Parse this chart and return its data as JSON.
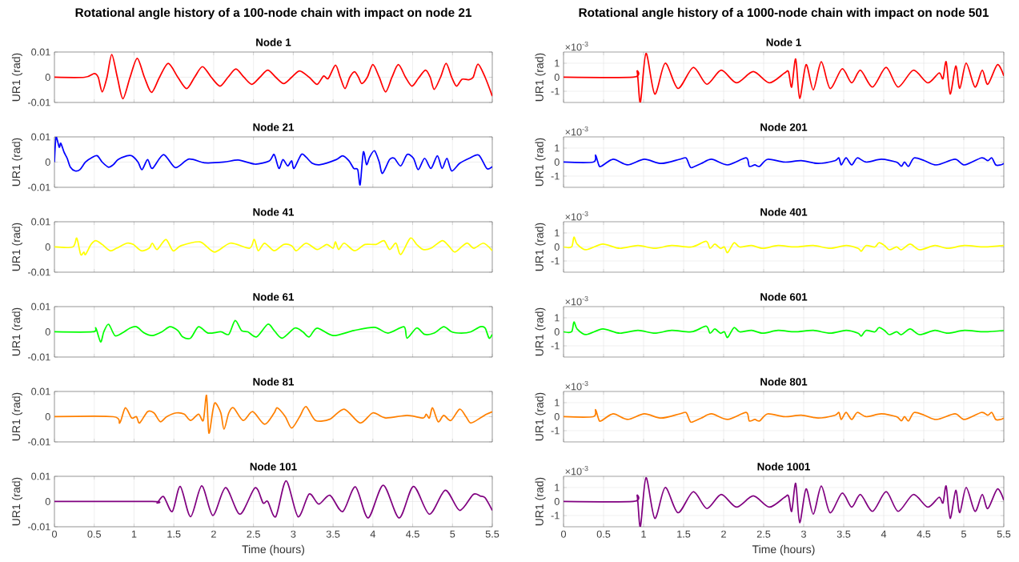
{
  "chart_data": [
    {
      "type": "line",
      "title": "Rotational angle history of a 100-node chain with impact on node 21",
      "subtitle": "Node 1",
      "ylabel": "UR1 (rad)",
      "xlim": [
        0,
        5.5
      ],
      "xticks": [
        0,
        0.5,
        1,
        1.5,
        2,
        2.5,
        3,
        3.5,
        4,
        4.5,
        5,
        5.5
      ],
      "ylim": [
        -0.01,
        0.01
      ],
      "yticks": [
        -0.01,
        0,
        0.01
      ],
      "grid": true,
      "tick_labels": "y",
      "color": "#ff0000",
      "x": [
        0,
        0.38,
        0.5,
        0.55,
        0.6,
        0.66,
        0.72,
        0.79,
        0.86,
        0.95,
        1.04,
        1.13,
        1.22,
        1.32,
        1.43,
        1.55,
        1.66,
        1.76,
        1.86,
        1.97,
        2.08,
        2.18,
        2.28,
        2.38,
        2.48,
        2.58,
        2.68,
        2.78,
        2.88,
        2.98,
        3.08,
        3.2,
        3.3,
        3.38,
        3.44,
        3.53,
        3.59,
        3.65,
        3.71,
        3.77,
        3.82,
        3.86,
        3.93,
        4.0,
        4.08,
        4.16,
        4.24,
        4.32,
        4.41,
        4.49,
        4.57,
        4.66,
        4.72,
        4.77,
        4.85,
        4.92,
        4.99,
        5.05,
        5.12,
        5.2,
        5.26,
        5.32,
        5.41,
        5.5
      ],
      "values": [
        0,
        0,
        0.0015,
        0,
        -0.0058,
        0,
        0.009,
        0,
        -0.0085,
        0,
        0.0075,
        0,
        -0.006,
        0,
        0.0055,
        0,
        -0.0045,
        0,
        0.0042,
        0,
        -0.0035,
        0,
        0.0033,
        0,
        -0.0028,
        0,
        0.0028,
        0,
        -0.0025,
        0,
        0.0025,
        0,
        -0.0028,
        0.0005,
        -0.0005,
        0.0048,
        0,
        -0.0045,
        0,
        0.0022,
        0,
        -0.0025,
        0,
        0.005,
        0,
        -0.0058,
        0,
        0.005,
        0,
        -0.0035,
        -0.0005,
        0.0028,
        0,
        -0.0048,
        0,
        0.0055,
        0,
        -0.0035,
        -0.0008,
        -0.001,
        0,
        0.0052,
        0,
        -0.0075
      ]
    },
    {
      "type": "line",
      "title": "Node 21",
      "ylabel": "UR1 (rad)",
      "xlim": [
        0,
        5.5
      ],
      "xticks": [
        0,
        0.5,
        1,
        1.5,
        2,
        2.5,
        3,
        3.5,
        4,
        4.5,
        5,
        5.5
      ],
      "ylim": [
        -0.01,
        0.01
      ],
      "yticks": [
        -0.01,
        0,
        0.01
      ],
      "grid": true,
      "tick_labels": "y",
      "color": "#0000ff",
      "x": [
        0,
        0.02,
        0.06,
        0.08,
        0.12,
        0.16,
        0.2,
        0.26,
        0.32,
        0.39,
        0.48,
        0.54,
        0.6,
        0.68,
        0.74,
        0.8,
        0.91,
        0.97,
        1.05,
        1.1,
        1.17,
        1.23,
        1.37,
        1.52,
        1.69,
        1.89,
        2.13,
        2.31,
        2.52,
        2.7,
        2.76,
        2.82,
        2.87,
        2.93,
        2.98,
        3.01,
        3.1,
        3.16,
        3.24,
        3.34,
        3.54,
        3.62,
        3.7,
        3.76,
        3.81,
        3.84,
        3.88,
        3.92,
        3.96,
        4.02,
        4.08,
        4.12,
        4.21,
        4.27,
        4.35,
        4.43,
        4.51,
        4.57,
        4.65,
        4.73,
        4.81,
        4.87,
        4.93,
        4.99,
        5.09,
        5.21,
        5.33,
        5.43,
        5.5
      ],
      "values": [
        0,
        0.0098,
        0.0059,
        0.0075,
        0.004,
        0.0015,
        -0.002,
        -0.0035,
        -0.003,
        0,
        0.002,
        0.0025,
        0,
        -0.002,
        -0.001,
        0.001,
        0.0025,
        0.0025,
        0,
        -0.003,
        0.001,
        -0.0025,
        0.003,
        -0.0022,
        0.0012,
        -0.0003,
        0,
        0.0008,
        -0.0008,
        0.0005,
        0.003,
        -0.0025,
        0.001,
        -0.0015,
        0.0005,
        -0.0025,
        0.003,
        0.002,
        -0.0005,
        -0.001,
        0.001,
        0.0025,
        0.0005,
        -0.0025,
        -0.003,
        -0.009,
        0.004,
        -0.001,
        0.002,
        0.0045,
        0,
        -0.0045,
        0.001,
        0.0015,
        -0.0015,
        0.003,
        0.0015,
        -0.003,
        0.0015,
        -0.0025,
        0.0025,
        -0.0025,
        0.0015,
        -0.0035,
        -0.0005,
        0.0015,
        0.0028,
        -0.0025,
        -0.0018
      ]
    },
    {
      "type": "line",
      "title": "Node 41",
      "ylabel": "UR1 (rad)",
      "xlim": [
        0,
        5.5
      ],
      "xticks": [
        0,
        0.5,
        1,
        1.5,
        2,
        2.5,
        3,
        3.5,
        4,
        4.5,
        5,
        5.5
      ],
      "ylim": [
        -0.01,
        0.01
      ],
      "yticks": [
        -0.01,
        0,
        0.01
      ],
      "grid": true,
      "tick_labels": "y",
      "color": "#ffff00",
      "x": [
        0,
        0.23,
        0.28,
        0.33,
        0.37,
        0.39,
        0.46,
        0.52,
        0.6,
        0.7,
        0.78,
        0.91,
        0.99,
        1.09,
        1.19,
        1.23,
        1.29,
        1.4,
        1.49,
        1.59,
        1.83,
        2.01,
        2.21,
        2.45,
        2.51,
        2.56,
        2.64,
        2.76,
        2.88,
        2.98,
        3.04,
        3.16,
        3.3,
        3.42,
        3.5,
        3.53,
        3.57,
        3.64,
        3.77,
        3.9,
        4.04,
        4.14,
        4.21,
        4.29,
        4.35,
        4.47,
        4.55,
        4.63,
        4.73,
        4.87,
        4.95,
        5.03,
        5.13,
        5.19,
        5.27,
        5.39,
        5.5
      ],
      "values": [
        0,
        0,
        0.0035,
        -0.003,
        -0.002,
        -0.003,
        0.001,
        0.0025,
        0.001,
        -0.0015,
        -0.0005,
        0.0015,
        0.001,
        -0.0015,
        -0.0005,
        0.0015,
        -0.001,
        0.003,
        -0.0015,
        0.0005,
        0.002,
        -0.002,
        0.0015,
        -0.0005,
        0.003,
        -0.0015,
        0.0015,
        -0.0015,
        0.001,
        0.0005,
        -0.0015,
        0.0015,
        -0.001,
        0.001,
        -0.0005,
        0.002,
        -0.001,
        0.0015,
        -0.0015,
        0.001,
        0.001,
        0.0025,
        -0.001,
        0.0015,
        -0.003,
        0.0035,
        0.001,
        -0.001,
        -0.0005,
        0.0025,
        0.0005,
        -0.002,
        0.0005,
        0.0015,
        -0.0005,
        0.0015,
        -0.0015
      ]
    },
    {
      "type": "line",
      "title": "Node 61",
      "ylabel": "UR1 (rad)",
      "xlim": [
        0,
        5.5
      ],
      "xticks": [
        0,
        0.5,
        1,
        1.5,
        2,
        2.5,
        3,
        3.5,
        4,
        4.5,
        5,
        5.5
      ],
      "ylim": [
        -0.01,
        0.01
      ],
      "yticks": [
        -0.01,
        0,
        0.01
      ],
      "grid": true,
      "tick_labels": "y",
      "color": "#00ff00",
      "x": [
        0,
        0.48,
        0.52,
        0.58,
        0.62,
        0.68,
        0.76,
        0.85,
        0.95,
        1.03,
        1.13,
        1.23,
        1.35,
        1.45,
        1.55,
        1.61,
        1.71,
        1.81,
        1.93,
        2.09,
        2.19,
        2.27,
        2.35,
        2.43,
        2.54,
        2.68,
        2.76,
        2.86,
        3.02,
        3.12,
        3.2,
        3.3,
        3.5,
        3.76,
        4.02,
        4.19,
        4.39,
        4.43,
        4.55,
        4.65,
        4.77,
        4.89,
        4.99,
        5.11,
        5.23,
        5.35,
        5.41,
        5.46,
        5.5
      ],
      "values": [
        0,
        0,
        0.0015,
        -0.004,
        0,
        0.003,
        -0.0015,
        -0.0005,
        0.0015,
        0.002,
        -0.0005,
        -0.0015,
        0,
        0.002,
        0.0005,
        -0.002,
        -0.0025,
        0.002,
        -0.0005,
        0,
        -0.001,
        0.0045,
        0.0005,
        0,
        -0.002,
        0.003,
        0.0005,
        -0.0025,
        0.0015,
        0,
        -0.002,
        0.0015,
        -0.0015,
        0.0005,
        0.0018,
        -0.0005,
        0.002,
        -0.0025,
        0.0015,
        -0.001,
        -0.0005,
        0.002,
        0,
        -0.0005,
        0,
        0.002,
        0.0015,
        -0.0025,
        -0.001
      ]
    },
    {
      "type": "line",
      "title": "Node 81",
      "ylabel": "UR1 (rad)",
      "xlim": [
        0,
        5.5
      ],
      "xticks": [
        0,
        0.5,
        1,
        1.5,
        2,
        2.5,
        3,
        3.5,
        4,
        4.5,
        5,
        5.5
      ],
      "ylim": [
        -0.01,
        0.01
      ],
      "yticks": [
        -0.01,
        0,
        0.01
      ],
      "grid": true,
      "tick_labels": "y",
      "color": "#ff8000",
      "x": [
        0,
        0.74,
        0.82,
        0.89,
        0.97,
        1.03,
        1.07,
        1.17,
        1.25,
        1.33,
        1.41,
        1.53,
        1.63,
        1.71,
        1.81,
        1.87,
        1.91,
        1.94,
        1.99,
        2.02,
        2.09,
        2.13,
        2.19,
        2.25,
        2.37,
        2.49,
        2.64,
        2.76,
        2.8,
        2.9,
        2.98,
        3.08,
        3.16,
        3.28,
        3.46,
        3.64,
        3.84,
        4.0,
        4.16,
        4.43,
        4.63,
        4.67,
        4.71,
        4.75,
        4.82,
        4.89,
        4.98,
        5.09,
        5.17,
        5.23,
        5.35,
        5.43,
        5.5
      ],
      "values": [
        0,
        0,
        -0.0025,
        0.0035,
        -0.0005,
        0,
        -0.0025,
        0.002,
        0.0015,
        -0.002,
        0,
        0.0015,
        0.001,
        -0.0015,
        0.001,
        -0.0015,
        0.0085,
        -0.0065,
        0.0025,
        0.0055,
        0.0015,
        -0.005,
        0.0015,
        0.0035,
        -0.0015,
        0.002,
        -0.003,
        0.0015,
        0.0035,
        0,
        -0.0045,
        0,
        0.004,
        -0.0015,
        -0.001,
        0.003,
        -0.0025,
        0.0015,
        -0.0005,
        0.0005,
        -0.0005,
        0.001,
        -0.0005,
        0.0035,
        -0.002,
        0.0005,
        -0.0015,
        0.003,
        0,
        -0.0025,
        -0.0005,
        0.001,
        0.002
      ]
    },
    {
      "type": "line",
      "title": "Node 101",
      "xlabel": "Time (hours)",
      "ylabel": "UR1 (rad)",
      "xlim": [
        0,
        5.5
      ],
      "xticks": [
        0,
        0.5,
        1,
        1.5,
        2,
        2.5,
        3,
        3.5,
        4,
        4.5,
        5,
        5.5
      ],
      "ylim": [
        -0.01,
        0.01
      ],
      "yticks": [
        -0.01,
        0,
        0.01
      ],
      "grid": true,
      "color": "#800080",
      "x": [
        0,
        1.23,
        1.29,
        1.37,
        1.48,
        1.58,
        1.71,
        1.85,
        1.99,
        2.15,
        2.33,
        2.52,
        2.62,
        2.68,
        2.78,
        2.91,
        3.06,
        3.2,
        3.32,
        3.46,
        3.62,
        3.78,
        3.94,
        4.13,
        4.33,
        4.51,
        4.71,
        4.91,
        5.09,
        5.26,
        5.35,
        5.41,
        5.5
      ],
      "values": [
        0,
        0,
        -0.0005,
        0.002,
        -0.004,
        0.006,
        -0.006,
        0.0062,
        -0.0055,
        0.0055,
        -0.005,
        0.0055,
        -0.0005,
        0,
        -0.006,
        0.0082,
        -0.006,
        0.003,
        -0.001,
        0.0025,
        -0.004,
        0.0058,
        -0.0065,
        0.0065,
        -0.0065,
        0.006,
        -0.005,
        0.0045,
        -0.0035,
        0.0028,
        0.0022,
        0.0015,
        -0.0035
      ]
    },
    {
      "type": "line",
      "title": "Rotational angle history of a 1000-node chain with impact on node 501",
      "subtitle": "Node 1",
      "ylabel": "UR1 (rad)",
      "annotations": [
        "×10$^{-3}$"
      ],
      "xlim": [
        0,
        5.5
      ],
      "xticks": [
        0,
        0.5,
        1,
        1.5,
        2,
        2.5,
        3,
        3.5,
        4,
        4.5,
        5,
        5.5
      ],
      "ylim": [
        -1.8,
        1.8
      ],
      "yticks": [
        -1,
        0,
        1
      ],
      "grid": true,
      "tick_labels": "y",
      "color": "#ff0000",
      "x": [
        0,
        0.87,
        0.92,
        0.96,
        1.03,
        1.14,
        1.27,
        1.43,
        1.62,
        1.79,
        1.97,
        2.16,
        2.37,
        2.57,
        2.76,
        2.81,
        2.85,
        2.9,
        2.95,
        3.03,
        3.12,
        3.22,
        3.33,
        3.48,
        3.6,
        3.71,
        3.86,
        4.03,
        4.18,
        4.37,
        4.55,
        4.69,
        4.74,
        4.78,
        4.83,
        4.9,
        4.95,
        5.03,
        5.14,
        5.23,
        5.3,
        5.42,
        5.5
      ],
      "values": [
        0,
        0,
        0.4,
        -1.8,
        1.7,
        -1.2,
        1.0,
        -0.8,
        0.7,
        -0.5,
        0.5,
        -0.4,
        0.4,
        -0.4,
        0.3,
        0.4,
        -0.7,
        1.3,
        -1.5,
        0.9,
        -0.9,
        1.1,
        -0.8,
        0.6,
        -0.4,
        0.5,
        -0.7,
        0.7,
        -0.7,
        0.5,
        -0.4,
        0.3,
        -0.1,
        1.1,
        -1.2,
        0.8,
        -0.8,
        1.0,
        -0.7,
        0.5,
        -0.5,
        0.9,
        0.1
      ]
    },
    {
      "type": "line",
      "title": "Node 201",
      "ylabel": "UR1 (rad)",
      "annotations": [
        "×10$^{-3}$"
      ],
      "xlim": [
        0,
        5.5
      ],
      "xticks": [
        0,
        0.5,
        1,
        1.5,
        2,
        2.5,
        3,
        3.5,
        4,
        4.5,
        5,
        5.5
      ],
      "ylim": [
        -1.8,
        1.8
      ],
      "yticks": [
        -1,
        0,
        1
      ],
      "grid": true,
      "tick_labels": "y",
      "color": "#0000ff",
      "x": [
        0,
        0.37,
        0.4,
        0.44,
        0.47,
        0.62,
        0.8,
        1.01,
        1.22,
        1.45,
        1.53,
        1.57,
        1.6,
        1.72,
        1.85,
        2.05,
        2.28,
        2.32,
        2.39,
        2.45,
        2.55,
        2.76,
        2.97,
        3.18,
        3.39,
        3.44,
        3.47,
        3.53,
        3.6,
        3.67,
        3.78,
        3.97,
        4.16,
        4.22,
        4.26,
        4.31,
        4.38,
        4.51,
        4.66,
        4.89,
        5.01,
        5.22,
        5.3,
        5.35,
        5.4,
        5.46,
        5.5
      ],
      "values": [
        0,
        0,
        0.5,
        -0.2,
        -0.3,
        0.2,
        -0.2,
        0.2,
        -0.1,
        0.2,
        0.3,
        -0.2,
        -0.4,
        -0.1,
        0.2,
        -0.2,
        0.3,
        -0.3,
        -0.2,
        -0.3,
        0.2,
        0,
        0.1,
        -0.1,
        0.1,
        0.3,
        -0.2,
        0.3,
        -0.2,
        0.3,
        0,
        0.2,
        0,
        -0.3,
        0,
        -0.3,
        0.3,
        0.1,
        -0.2,
        0.2,
        -0.2,
        0.3,
        0.1,
        0.3,
        -0.2,
        -0.2,
        -0.1
      ]
    },
    {
      "type": "line",
      "title": "Node 401",
      "ylabel": "UR1 (rad)",
      "annotations": [
        "×10$^{-3}$"
      ],
      "xlim": [
        0,
        5.5
      ],
      "xticks": [
        0,
        0.5,
        1,
        1.5,
        2,
        2.5,
        3,
        3.5,
        4,
        4.5,
        5,
        5.5
      ],
      "ylim": [
        -1.8,
        1.8
      ],
      "yticks": [
        -1,
        0,
        1
      ],
      "grid": true,
      "tick_labels": "y",
      "color": "#ffff00",
      "x": [
        0,
        0.1,
        0.13,
        0.17,
        0.28,
        0.49,
        0.7,
        0.93,
        1.14,
        1.35,
        1.6,
        1.78,
        1.83,
        1.89,
        1.96,
        2.01,
        2.05,
        2.13,
        2.2,
        2.35,
        2.49,
        2.68,
        2.89,
        3.12,
        3.33,
        3.53,
        3.68,
        3.72,
        3.78,
        3.89,
        3.94,
        4.01,
        4.07,
        4.16,
        4.22,
        4.33,
        4.45,
        4.64,
        4.8,
        5.01,
        5.26,
        5.5
      ],
      "values": [
        0,
        0,
        0.7,
        0.2,
        -0.2,
        0.2,
        -0.1,
        0.1,
        -0.1,
        0.1,
        0,
        0.4,
        -0.1,
        0.2,
        -0.1,
        0,
        -0.4,
        0.3,
        0,
        0.1,
        -0.1,
        0.1,
        0,
        0.1,
        -0.1,
        0.1,
        -0.1,
        -0.3,
        0.1,
        0,
        0.3,
        0.1,
        -0.2,
        0,
        -0.2,
        0.2,
        -0.2,
        0.1,
        -0.1,
        0.1,
        0,
        0.1
      ]
    },
    {
      "type": "line",
      "title": "Node 601",
      "ylabel": "UR1 (rad)",
      "annotations": [
        "×10$^{-3}$"
      ],
      "xlim": [
        0,
        5.5
      ],
      "xticks": [
        0,
        0.5,
        1,
        1.5,
        2,
        2.5,
        3,
        3.5,
        4,
        4.5,
        5,
        5.5
      ],
      "ylim": [
        -1.8,
        1.8
      ],
      "yticks": [
        -1,
        0,
        1
      ],
      "grid": true,
      "tick_labels": "y",
      "color": "#00ff00",
      "x": [
        0,
        0.1,
        0.13,
        0.17,
        0.28,
        0.49,
        0.7,
        0.93,
        1.14,
        1.35,
        1.6,
        1.78,
        1.83,
        1.89,
        1.96,
        2.01,
        2.05,
        2.13,
        2.2,
        2.35,
        2.49,
        2.68,
        2.89,
        3.12,
        3.33,
        3.53,
        3.68,
        3.72,
        3.78,
        3.89,
        3.94,
        4.01,
        4.07,
        4.16,
        4.22,
        4.33,
        4.45,
        4.64,
        4.8,
        5.01,
        5.26,
        5.5
      ],
      "values": [
        0,
        0,
        0.7,
        0.2,
        -0.2,
        0.2,
        -0.1,
        0.1,
        -0.1,
        0.1,
        0,
        0.4,
        -0.1,
        0.2,
        -0.1,
        0,
        -0.4,
        0.3,
        0,
        0.1,
        -0.1,
        0.1,
        0,
        0.1,
        -0.1,
        0.1,
        -0.1,
        -0.3,
        0.1,
        0,
        0.3,
        0.1,
        -0.2,
        0,
        -0.2,
        0.2,
        -0.2,
        0.1,
        -0.1,
        0.1,
        0,
        0.1
      ]
    },
    {
      "type": "line",
      "title": "Node 801",
      "ylabel": "UR1 (rad)",
      "annotations": [
        "×10$^{-3}$"
      ],
      "xlim": [
        0,
        5.5
      ],
      "xticks": [
        0,
        0.5,
        1,
        1.5,
        2,
        2.5,
        3,
        3.5,
        4,
        4.5,
        5,
        5.5
      ],
      "ylim": [
        -1.8,
        1.8
      ],
      "yticks": [
        -1,
        0,
        1
      ],
      "grid": true,
      "tick_labels": "y",
      "color": "#ff8000",
      "x": [
        0,
        0.37,
        0.4,
        0.44,
        0.47,
        0.62,
        0.8,
        1.01,
        1.22,
        1.45,
        1.53,
        1.57,
        1.6,
        1.72,
        1.85,
        2.05,
        2.28,
        2.32,
        2.39,
        2.45,
        2.55,
        2.76,
        2.97,
        3.18,
        3.39,
        3.44,
        3.47,
        3.53,
        3.6,
        3.67,
        3.78,
        3.97,
        4.16,
        4.22,
        4.26,
        4.31,
        4.38,
        4.51,
        4.66,
        4.89,
        5.01,
        5.22,
        5.3,
        5.35,
        5.4,
        5.46,
        5.5
      ],
      "values": [
        0,
        0,
        0.5,
        -0.2,
        -0.3,
        0.2,
        -0.2,
        0.2,
        -0.1,
        0.2,
        0.3,
        -0.2,
        -0.4,
        -0.1,
        0.2,
        -0.2,
        0.3,
        -0.3,
        -0.2,
        -0.3,
        0.2,
        0,
        0.1,
        -0.1,
        0.1,
        0.3,
        -0.2,
        0.3,
        -0.2,
        0.3,
        0,
        0.2,
        0,
        -0.3,
        0,
        -0.3,
        0.3,
        0.1,
        -0.2,
        0.2,
        -0.2,
        0.3,
        0.1,
        0.3,
        -0.2,
        -0.2,
        -0.1
      ]
    },
    {
      "type": "line",
      "title": "Node 1001",
      "xlabel": "Time (hours)",
      "ylabel": "UR1 (rad)",
      "annotations": [
        "×10$^{-3}$"
      ],
      "xlim": [
        0,
        5.5
      ],
      "xticks": [
        0,
        0.5,
        1,
        1.5,
        2,
        2.5,
        3,
        3.5,
        4,
        4.5,
        5,
        5.5
      ],
      "ylim": [
        -1.8,
        1.8
      ],
      "yticks": [
        -1,
        0,
        1
      ],
      "grid": true,
      "color": "#800080",
      "x": [
        0,
        0.87,
        0.92,
        0.96,
        1.03,
        1.14,
        1.27,
        1.43,
        1.62,
        1.79,
        1.97,
        2.16,
        2.37,
        2.57,
        2.76,
        2.81,
        2.85,
        2.9,
        2.95,
        3.03,
        3.12,
        3.22,
        3.33,
        3.48,
        3.6,
        3.71,
        3.86,
        4.03,
        4.18,
        4.37,
        4.55,
        4.69,
        4.74,
        4.78,
        4.83,
        4.9,
        4.95,
        5.03,
        5.14,
        5.23,
        5.3,
        5.42,
        5.5
      ],
      "values": [
        0,
        0,
        0.4,
        -1.8,
        1.7,
        -1.2,
        1.0,
        -0.8,
        0.7,
        -0.5,
        0.5,
        -0.4,
        0.4,
        -0.4,
        0.3,
        0.4,
        -0.7,
        1.3,
        -1.5,
        0.9,
        -0.9,
        1.1,
        -0.8,
        0.6,
        -0.4,
        0.5,
        -0.7,
        0.7,
        -0.7,
        0.5,
        -0.4,
        0.3,
        -0.1,
        1.1,
        -1.2,
        0.8,
        -0.8,
        1.0,
        -0.7,
        0.5,
        -0.5,
        0.9,
        0.1
      ]
    }
  ]
}
